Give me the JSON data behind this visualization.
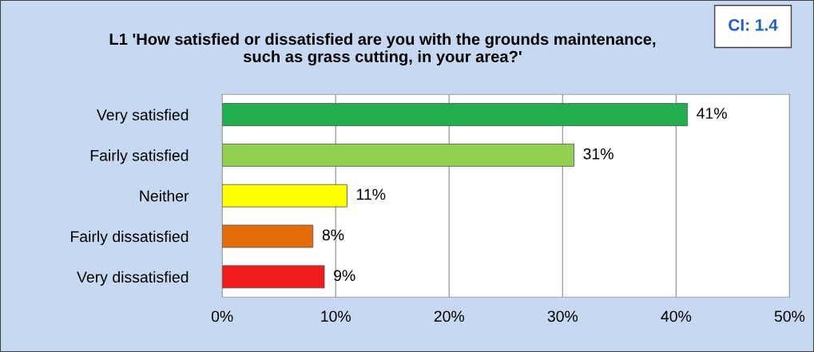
{
  "chart_data": {
    "type": "bar",
    "orientation": "horizontal",
    "title": "L1 'How satisfied or dissatisfied are you with the grounds maintenance, such as grass cutting, in your area?'",
    "annotations": [
      "CI: 1.4"
    ],
    "categories": [
      "Very satisfied",
      "Fairly satisfied",
      "Neither",
      "Fairly dissatisfied",
      "Very dissatisfied"
    ],
    "values": [
      41,
      31,
      11,
      8,
      9
    ],
    "value_labels": [
      "41%",
      "31%",
      "11%",
      "8%",
      "9%"
    ],
    "colors": [
      "#22b04f",
      "#92d050",
      "#ffff00",
      "#e46c0a",
      "#f01c1c"
    ],
    "xlim": [
      0,
      50
    ],
    "xticks": [
      {
        "value": 0,
        "label": "0%"
      },
      {
        "value": 10,
        "label": "10%"
      },
      {
        "value": 20,
        "label": "20%"
      },
      {
        "value": 30,
        "label": "30%"
      },
      {
        "value": 40,
        "label": "40%"
      },
      {
        "value": 50,
        "label": "50%"
      }
    ],
    "grid": "x",
    "legend": false
  }
}
